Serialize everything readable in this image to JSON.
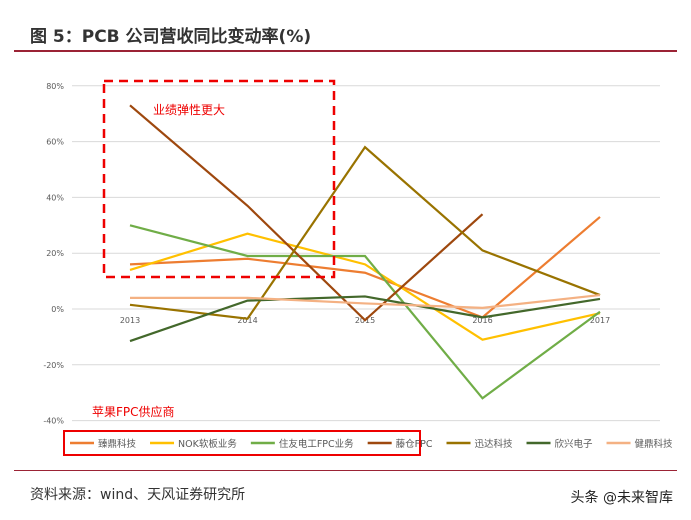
{
  "title": "图 5：PCB 公司营收同比变动率(%)",
  "source": "资料来源：wind、天风证券研究所",
  "watermark": "头条 @未来智库",
  "annotations": {
    "elastic": "业绩弹性更大",
    "apple": "苹果FPC供应商"
  },
  "chart_data": {
    "type": "line",
    "x": [
      "2013",
      "2014",
      "2015",
      "2016",
      "2017"
    ],
    "ylim": [
      -40,
      80
    ],
    "yticks": [
      -40,
      -20,
      0,
      20,
      40,
      60,
      80
    ],
    "ytick_labels": [
      "-40%",
      "-20%",
      "0%",
      "20%",
      "40%",
      "60%",
      "80%"
    ],
    "legend_position": "bottom",
    "series": [
      {
        "name": "臻鼎科技",
        "color": "#ED7D31",
        "values": [
          16,
          18,
          13,
          -3,
          33
        ]
      },
      {
        "name": "NOK软板业务",
        "color": "#FFC000",
        "values": [
          14,
          27,
          16,
          -11,
          -1.5
        ]
      },
      {
        "name": "住友电工FPC业务",
        "color": "#70AD47",
        "values": [
          30,
          19,
          19,
          -32,
          -1
        ]
      },
      {
        "name": "藤仓FPC",
        "color": "#9E480E",
        "values": [
          73,
          37,
          -4,
          34,
          null
        ]
      },
      {
        "name": "迅达科技",
        "color": "#997300",
        "values": [
          1.5,
          -3.5,
          58,
          21,
          5
        ]
      },
      {
        "name": "欣兴电子",
        "color": "#43682B",
        "values": [
          -11.5,
          3,
          4.5,
          -3,
          3.6
        ]
      },
      {
        "name": "健鼎科技",
        "color": "#F4B183",
        "values": [
          4,
          4,
          2,
          0.4,
          5
        ]
      }
    ]
  }
}
